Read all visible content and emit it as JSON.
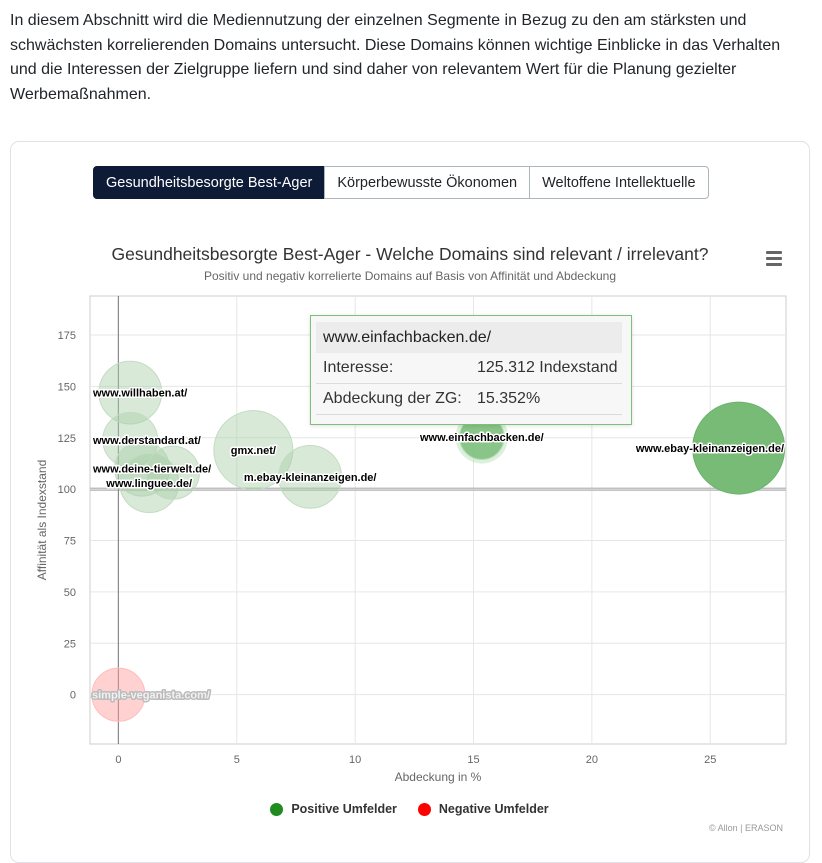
{
  "intro": "In diesem Abschnitt wird die Mediennutzung der einzelnen Segmente in Bezug zu den am stärksten und schwächsten korrelierenden Domains untersucht. Diese Domains können wichtige Einblicke in das Verhalten und die Interessen der Zielgruppe liefern und sind daher von relevantem Wert für die Planung gezielter Werbemaßnahmen.",
  "tabs": [
    {
      "label": "Gesundheitsbesorgte Best-Ager",
      "active": true
    },
    {
      "label": "Körperbewusste Ökonomen",
      "active": false
    },
    {
      "label": "Weltoffene Intellektuelle",
      "active": false
    }
  ],
  "colors": {
    "positive": "#2e8b2e",
    "negative": "#ff0000",
    "positive_fill": "#77bb77"
  },
  "chart_data": {
    "type": "scatter",
    "title": "Gesundheitsbesorgte Best-Ager - Welche Domains sind relevant / irrelevant?",
    "subtitle": "Positiv und negativ korrelierte Domains auf Basis von Affinität und Abdeckung",
    "xlabel": "Abdeckung in %",
    "ylabel": "Affinität als Indexstand",
    "xlim": [
      -1.2,
      28.2
    ],
    "ylim": [
      -24,
      194
    ],
    "xticks": [
      0,
      5,
      10,
      15,
      20,
      25
    ],
    "yticks": [
      0,
      25,
      50,
      75,
      100,
      125,
      150,
      175
    ],
    "reference_y": 100,
    "reference_x": 0,
    "series": [
      {
        "name": "Positive Umfelder",
        "color": "#2e8b2e",
        "points": [
          {
            "label": "www.willhaben.at/",
            "x": 0.5,
            "y": 147,
            "z": 3.0
          },
          {
            "label": "www.derstandard.at/",
            "x": 0.5,
            "y": 124,
            "z": 2.0
          },
          {
            "label": "www.deine-tierwelt.de/",
            "x": 1.0,
            "y": 110,
            "z": 2.0
          },
          {
            "label": "www.linguee.de/",
            "x": 1.3,
            "y": 103,
            "z": 2.5
          },
          {
            "label": "",
            "x": 2.3,
            "y": 108,
            "z": 1.8
          },
          {
            "label": "gmx.net/",
            "x": 5.7,
            "y": 119,
            "z": 5.7
          },
          {
            "label": "m.ebay-kleinanzeigen.de/",
            "x": 8.1,
            "y": 106,
            "z": 3.0
          },
          {
            "label": "www.einfachbacken.de/",
            "x": 15.352,
            "y": 125.312,
            "z": 1.0
          },
          {
            "label": "www.ebay-kleinanzeigen.de/",
            "x": 26.2,
            "y": 120,
            "z": 8.5
          }
        ]
      },
      {
        "name": "Negative Umfelder",
        "color": "#ff0000",
        "points": [
          {
            "label": "simple-veganista.com/",
            "x": 0,
            "y": 0,
            "z": 1.8
          }
        ]
      }
    ]
  },
  "tooltip": {
    "domain": "www.einfachbacken.de/",
    "interest_label": "Interesse:",
    "interest_value": "125.312 Indexstand",
    "coverage_label": "Abdeckung der ZG:",
    "coverage_value": "15.352%"
  },
  "legend": [
    {
      "label": "Positive Umfelder",
      "color": "#1e8c1e"
    },
    {
      "label": "Negative Umfelder",
      "color": "#ff0000"
    }
  ],
  "credits": "© Allon | ERASON",
  "menu_icon": "hamburger-menu-icon"
}
